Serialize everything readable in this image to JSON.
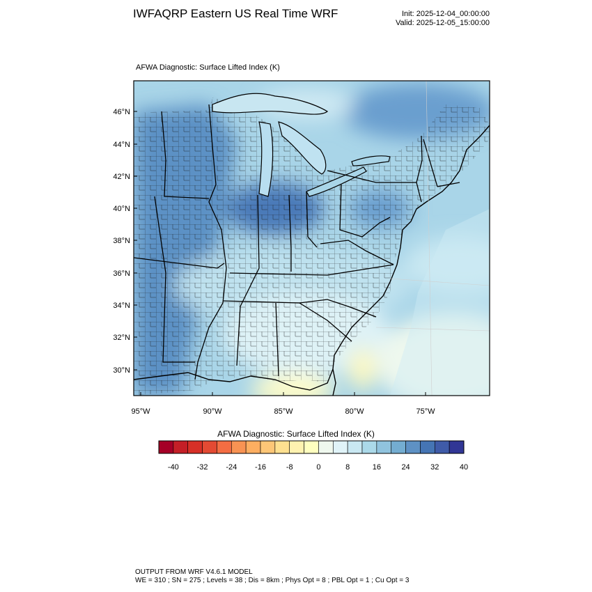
{
  "header": {
    "title": "IWFAQRP Eastern US Real Time WRF",
    "init": "Init: 2025-12-04_00:00:00",
    "valid": "Valid: 2025-12-05_15:00:00"
  },
  "plot": {
    "title": "AFWA Diagnostic: Surface Lifted Index   (K)",
    "lat_labels": [
      "46°N",
      "44°N",
      "42°N",
      "40°N",
      "38°N",
      "36°N",
      "34°N",
      "32°N",
      "30°N"
    ],
    "lon_labels": [
      "95°W",
      "90°W",
      "85°W",
      "80°W",
      "75°W"
    ]
  },
  "colorbar": {
    "title": "AFWA Diagnostic: Surface Lifted Index  (K)",
    "tick_labels": [
      "-40",
      "-32",
      "-24",
      "-16",
      "-8",
      "0",
      "8",
      "16",
      "24",
      "32",
      "40"
    ],
    "colors": [
      "#a50026",
      "#c41f27",
      "#d73027",
      "#e34a33",
      "#f46d43",
      "#f89353",
      "#fdae61",
      "#fdc677",
      "#fee090",
      "#fff2b0",
      "#ffffbf",
      "#eff8ee",
      "#e0f3f8",
      "#c9e8f2",
      "#abd9e9",
      "#90c3de",
      "#74add1",
      "#5e91c4",
      "#4575b4",
      "#3f5ba8",
      "#313695"
    ]
  },
  "footer": {
    "line1": "OUTPUT FROM WRF V4.6.1 MODEL",
    "line2": "WE = 310 ; SN = 275 ; Levels = 38 ; Dis = 8km ; Phys Opt = 8 ; PBL Opt = 1 ; Cu Opt = 3"
  }
}
